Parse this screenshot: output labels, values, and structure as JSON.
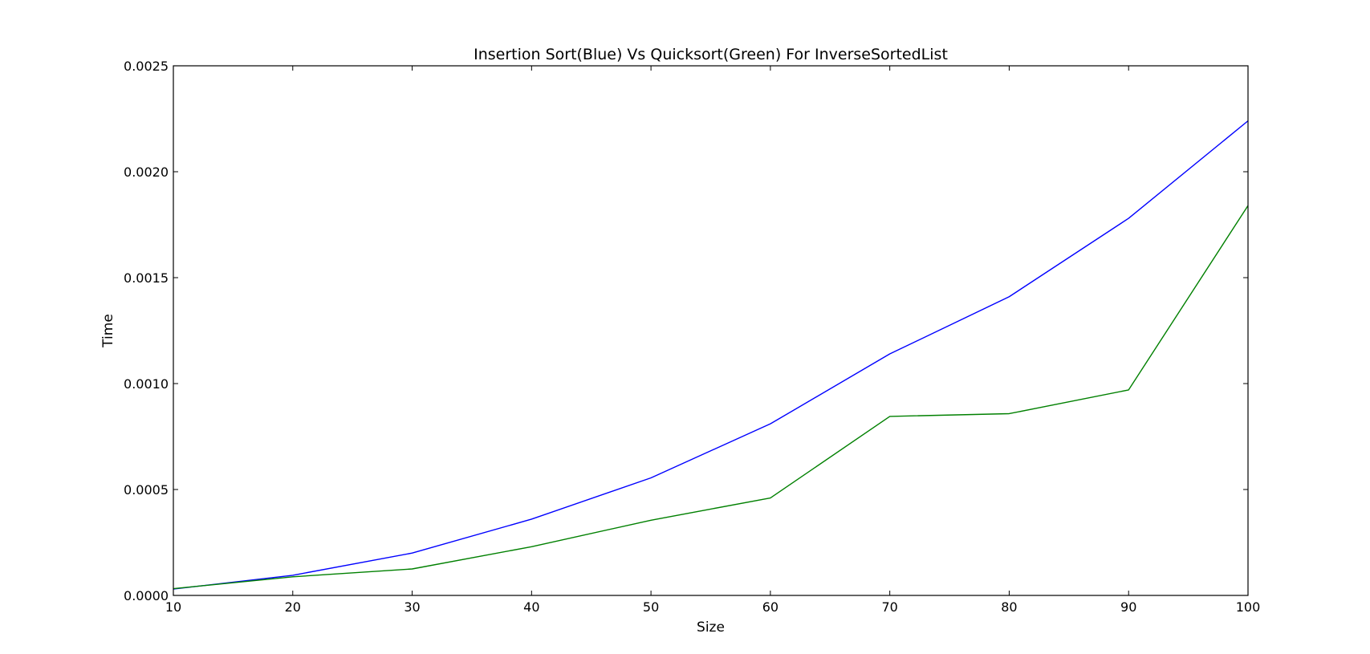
{
  "chart_data": {
    "type": "line",
    "title": "Insertion Sort(Blue) Vs Quicksort(Green) For InverseSortedList",
    "xlabel": "Size",
    "ylabel": "Time",
    "x": [
      10,
      20,
      30,
      40,
      50,
      60,
      70,
      80,
      90,
      100
    ],
    "xlim": [
      10,
      100
    ],
    "ylim": [
      0.0,
      0.0025
    ],
    "xticks": [
      "10",
      "20",
      "30",
      "40",
      "50",
      "60",
      "70",
      "80",
      "90",
      "100"
    ],
    "yticks": [
      "0.0000",
      "0.0005",
      "0.0010",
      "0.0015",
      "0.0020",
      "0.0025"
    ],
    "grid": false,
    "series": [
      {
        "color": "#0000ff",
        "values": [
          3e-05,
          9.5e-05,
          0.0002,
          0.00036,
          0.000555,
          0.00081,
          0.00114,
          0.00141,
          0.00178,
          0.00224
        ]
      },
      {
        "color": "#008000",
        "values": [
          3.2e-05,
          8.8e-05,
          0.000125,
          0.00023,
          0.000355,
          0.00046,
          0.000845,
          0.000858,
          0.00097,
          0.00184
        ]
      }
    ]
  }
}
